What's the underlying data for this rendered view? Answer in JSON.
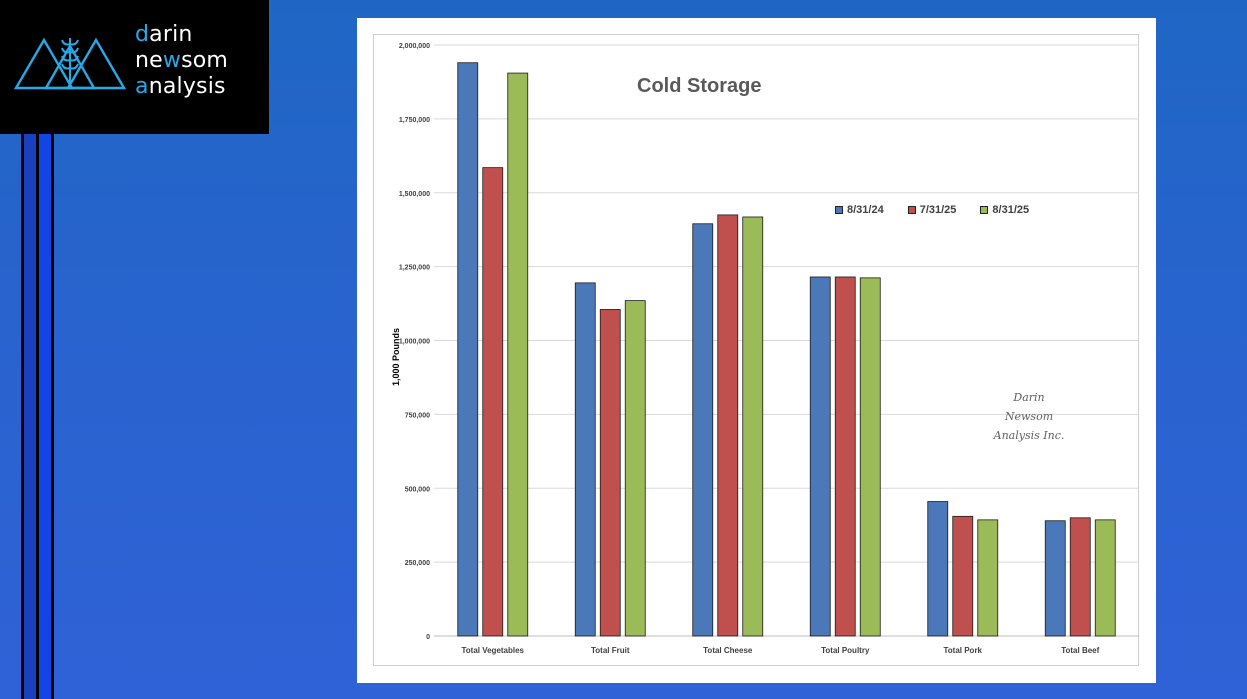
{
  "logo": {
    "line1_accent": "d",
    "line1_rest": "arin",
    "line2_a": "ne",
    "line2_accent": "w",
    "line2_b": "som",
    "line3_accent": "a",
    "line3_rest": "nalysis",
    "icon": "mountains-wheat-icon"
  },
  "colors": {
    "background": "#2a63d0",
    "logo_accent": "#29a8e6",
    "series": [
      "#4a78b8",
      "#c0504d",
      "#9bbb59"
    ]
  },
  "chart_data": {
    "type": "bar",
    "title": "Cold Storage",
    "ylabel": "1,000 Pounds",
    "xlabel": "",
    "ylim": [
      0,
      2000000
    ],
    "yticks": [
      0,
      250000,
      500000,
      750000,
      1000000,
      1250000,
      1500000,
      1750000,
      2000000
    ],
    "ytick_labels": [
      "0",
      "250,000",
      "500,000",
      "750,000",
      "1,000,000",
      "1,250,000",
      "1,500,000",
      "1,750,000",
      "2,000,000"
    ],
    "categories": [
      "Total Vegetables",
      "Total Fruit",
      "Total Cheese",
      "Total Poultry",
      "Total Pork",
      "Total Beef"
    ],
    "series": [
      {
        "name": "8/31/24",
        "color": "#4a78b8",
        "values": [
          1940000,
          1195000,
          1395000,
          1215000,
          455000,
          390000
        ]
      },
      {
        "name": "7/31/25",
        "color": "#c0504d",
        "values": [
          1585000,
          1105000,
          1425000,
          1215000,
          405000,
          400000
        ]
      },
      {
        "name": "8/31/25",
        "color": "#9bbb59",
        "values": [
          1905000,
          1135000,
          1418000,
          1212000,
          393000,
          393000
        ]
      }
    ],
    "legend_position": "top-right",
    "grid": true
  },
  "watermark": {
    "line1": "Darin Newsom",
    "line2": "Analysis Inc."
  }
}
